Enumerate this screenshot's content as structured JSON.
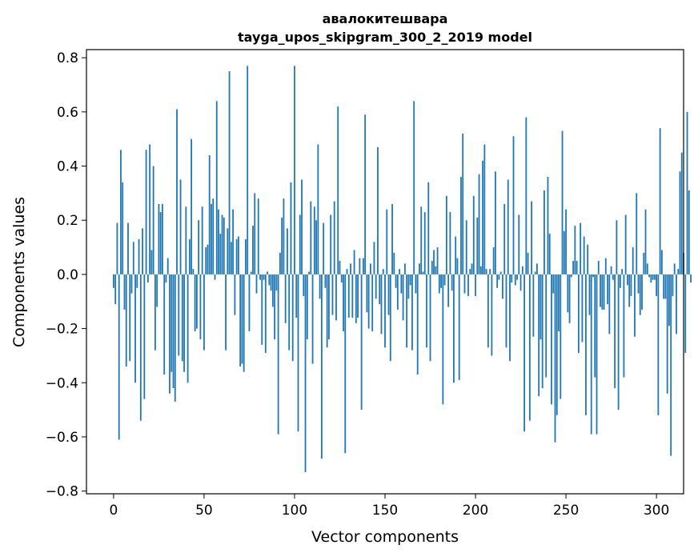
{
  "chart_data": {
    "type": "bar",
    "title_line1": "авалокитешвара",
    "title_line2": "tayga_upos_skipgram_300_2_2019 model",
    "xlabel": "Vector components",
    "ylabel": "Components values",
    "xlim": [
      -15,
      315
    ],
    "ylim": [
      -0.81,
      0.83
    ],
    "xticks": [
      0,
      50,
      100,
      150,
      200,
      250,
      300
    ],
    "xtick_labels": [
      "0",
      "50",
      "100",
      "150",
      "200",
      "250",
      "300"
    ],
    "yticks": [
      -0.8,
      -0.6,
      -0.4,
      -0.2,
      0.0,
      0.2,
      0.4,
      0.6,
      0.8
    ],
    "ytick_labels": [
      "−0.8",
      "−0.6",
      "−0.4",
      "−0.2",
      "0.0",
      "0.2",
      "0.4",
      "0.6",
      "0.8"
    ],
    "grid": false,
    "bar_color": "#1f77b4",
    "values": [
      -0.05,
      -0.11,
      0.19,
      -0.61,
      0.46,
      0.34,
      -0.13,
      -0.34,
      0.19,
      -0.32,
      -0.07,
      0.12,
      -0.4,
      -0.05,
      0.13,
      -0.54,
      0.17,
      -0.46,
      0.46,
      -0.03,
      0.48,
      0.09,
      0.4,
      -0.28,
      -0.12,
      0.26,
      0.23,
      0.26,
      -0.37,
      -0.03,
      0.06,
      -0.44,
      -0.36,
      -0.42,
      -0.47,
      0.61,
      -0.3,
      0.35,
      -0.32,
      -0.36,
      0.25,
      -0.4,
      0.13,
      0.5,
      0.02,
      -0.21,
      -0.2,
      0.2,
      -0.24,
      0.25,
      -0.28,
      0.1,
      0.11,
      0.44,
      0.26,
      0.28,
      -0.02,
      0.64,
      0.24,
      0.15,
      0.22,
      0.21,
      -0.28,
      0.17,
      0.75,
      0.12,
      0.24,
      -0.15,
      0.13,
      0.14,
      -0.34,
      -0.33,
      -0.36,
      0.13,
      0.77,
      -0.21,
      0.01,
      0.18,
      0.3,
      -0.07,
      0.28,
      -0.02,
      -0.26,
      -0.02,
      -0.29,
      0.01,
      -0.04,
      -0.06,
      -0.12,
      -0.24,
      -0.06,
      -0.59,
      0.08,
      0.21,
      0.28,
      -0.18,
      0.17,
      -0.28,
      0.34,
      -0.32,
      0.77,
      -0.16,
      -0.58,
      0.22,
      0.35,
      -0.08,
      -0.73,
      -0.24,
      0.01,
      0.27,
      -0.33,
      0.25,
      0.2,
      0.48,
      -0.09,
      -0.68,
      0.19,
      -0.05,
      -0.27,
      -0.24,
      0.22,
      -0.15,
      0.27,
      -0.17,
      0.62,
      0.05,
      -0.03,
      -0.21,
      -0.66,
      0.02,
      -0.16,
      0.04,
      -0.16,
      0.09,
      -0.18,
      -0.16,
      0.06,
      -0.5,
      0.06,
      0.59,
      -0.14,
      -0.2,
      0.04,
      -0.21,
      0.12,
      -0.09,
      0.47,
      -0.11,
      -0.22,
      0.02,
      -0.27,
      0.24,
      -0.15,
      -0.32,
      0.26,
      0.08,
      -0.05,
      -0.13,
      0.02,
      -0.07,
      -0.17,
      0.04,
      -0.27,
      -0.09,
      -0.04,
      -0.28,
      0.64,
      -0.07,
      -0.37,
      0.04,
      0.25,
      0.01,
      0.23,
      -0.27,
      0.34,
      -0.32,
      0.05,
      0.09,
      0.03,
      0.1,
      -0.07,
      -0.05,
      -0.48,
      -0.04,
      0.29,
      -0.12,
      0.23,
      -0.06,
      -0.4,
      0.14,
      0.06,
      -0.39,
      0.36,
      0.52,
      -0.07,
      0.2,
      -0.08,
      0.02,
      0.04,
      0.29,
      -0.08,
      0.21,
      0.37,
      0.03,
      0.42,
      0.48,
      0.02,
      -0.27,
      0.02,
      -0.3,
      0.1,
      0.38,
      -0.05,
      -0.02,
      0.01,
      -0.09,
      0.26,
      -0.27,
      0.35,
      -0.32,
      -0.03,
      0.51,
      -0.04,
      -0.02,
      0.22,
      -0.06,
      0.03,
      -0.58,
      0.58,
      0.08,
      -0.54,
      0.27,
      -0.23,
      0.01,
      0.04,
      -0.45,
      -0.24,
      -0.42,
      0.31,
      -0.38,
      0.36,
      0.15,
      -0.48,
      -0.07,
      -0.62,
      -0.52,
      -0.21,
      -0.46,
      0.53,
      0.16,
      0.24,
      -0.14,
      -0.18,
      -0.01,
      0.05,
      0.18,
      0.05,
      -0.29,
      0.19,
      -0.25,
      0.14,
      -0.52,
      0.11,
      -0.15,
      -0.59,
      -0.01,
      -0.38,
      -0.59,
      0.05,
      -0.12,
      -0.13,
      -0.13,
      0.06,
      -0.11,
      -0.22,
      0.03,
      -0.02,
      -0.42,
      0.2,
      -0.5,
      -0.05,
      0.02,
      -0.38,
      0.22,
      -0.04,
      -0.12,
      -0.08,
      0.1,
      -0.23,
      0.3,
      -0.07,
      -0.15,
      -0.13,
      0.08,
      0.24,
      0.04,
      -0.01,
      -0.03,
      -0.02,
      -0.02,
      -0.08,
      -0.52,
      0.54,
      0.09,
      -0.09,
      -0.09,
      -0.44,
      -0.19,
      -0.67,
      -0.08,
      0.04,
      -0.22,
      0.02,
      0.38,
      0.45,
      0.08,
      -0.29,
      0.6,
      0.31,
      -0.03
    ]
  }
}
